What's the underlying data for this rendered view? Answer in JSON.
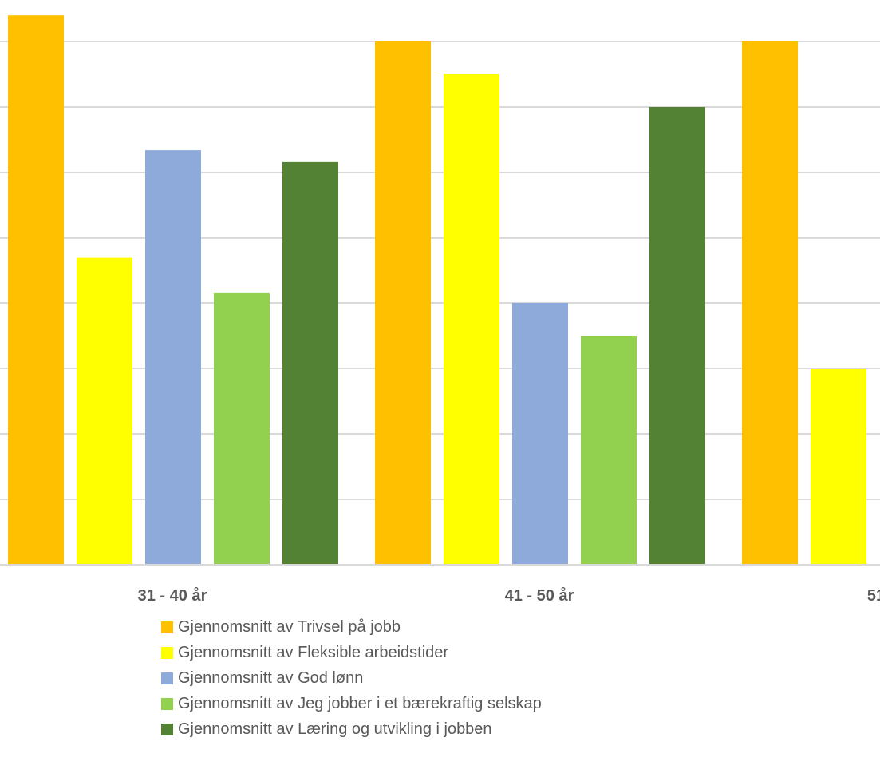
{
  "chart_data": {
    "type": "bar",
    "categories": [
      "31 - 40 år",
      "41 - 50 år",
      "51"
    ],
    "series": [
      {
        "name": "Gjennomsnitt av Trivsel på jobb",
        "color": "#FFC000",
        "values": [
          4.2,
          4.0,
          4.0
        ]
      },
      {
        "name": "Gjennomsnitt av Fleksible arbeidstider",
        "color": "#FFFF00",
        "values": [
          2.35,
          3.75,
          1.5
        ]
      },
      {
        "name": "Gjennomsnitt av God lønn",
        "color": "#8EAADB",
        "values": [
          3.17,
          2.0,
          null
        ]
      },
      {
        "name": "Gjennomsnitt av Jeg jobber i et bærekraftig selskap",
        "color": "#92D050",
        "values": [
          2.08,
          1.75,
          null
        ]
      },
      {
        "name": "Gjennomsnitt av Læring og utvikling i jobben",
        "color": "#548235",
        "values": [
          3.08,
          3.5,
          null
        ]
      }
    ],
    "ylim": [
      0,
      4.2
    ],
    "y_gridlines": [
      0.5,
      1.0,
      1.5,
      2.0,
      2.5,
      3.0,
      3.5,
      4.0
    ],
    "grid": true,
    "legend_position": "bottom"
  }
}
